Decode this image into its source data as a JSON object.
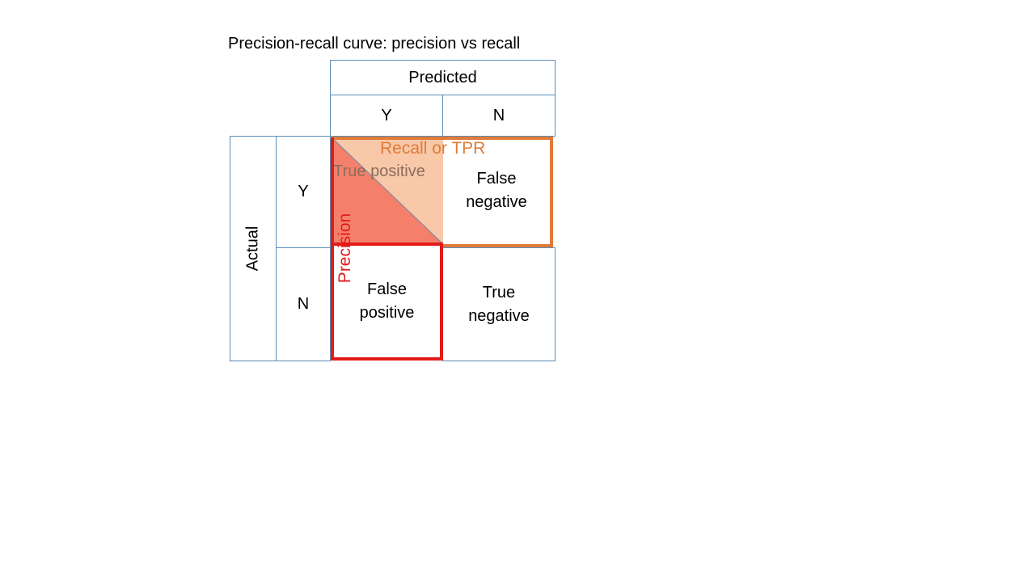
{
  "title": "Precision-recall curve: precision vs recall",
  "predicted_header": "Predicted",
  "actual_header": "Actual",
  "columns": [
    "Y",
    "N"
  ],
  "rows": [
    "Y",
    "N"
  ],
  "cells": {
    "true_positive": "True positive",
    "false_negative": "False negative",
    "false_positive": "False positive",
    "true_negative": "True negative"
  },
  "overlays": {
    "recall_label": "Recall or TPR",
    "precision_label": "Precision"
  },
  "colors": {
    "grid_border": "#5b8db8",
    "recall": "#e07b39",
    "precision": "#e41a1a",
    "tp_peach": "#f9c8a8",
    "tp_red": "#f4806b"
  }
}
